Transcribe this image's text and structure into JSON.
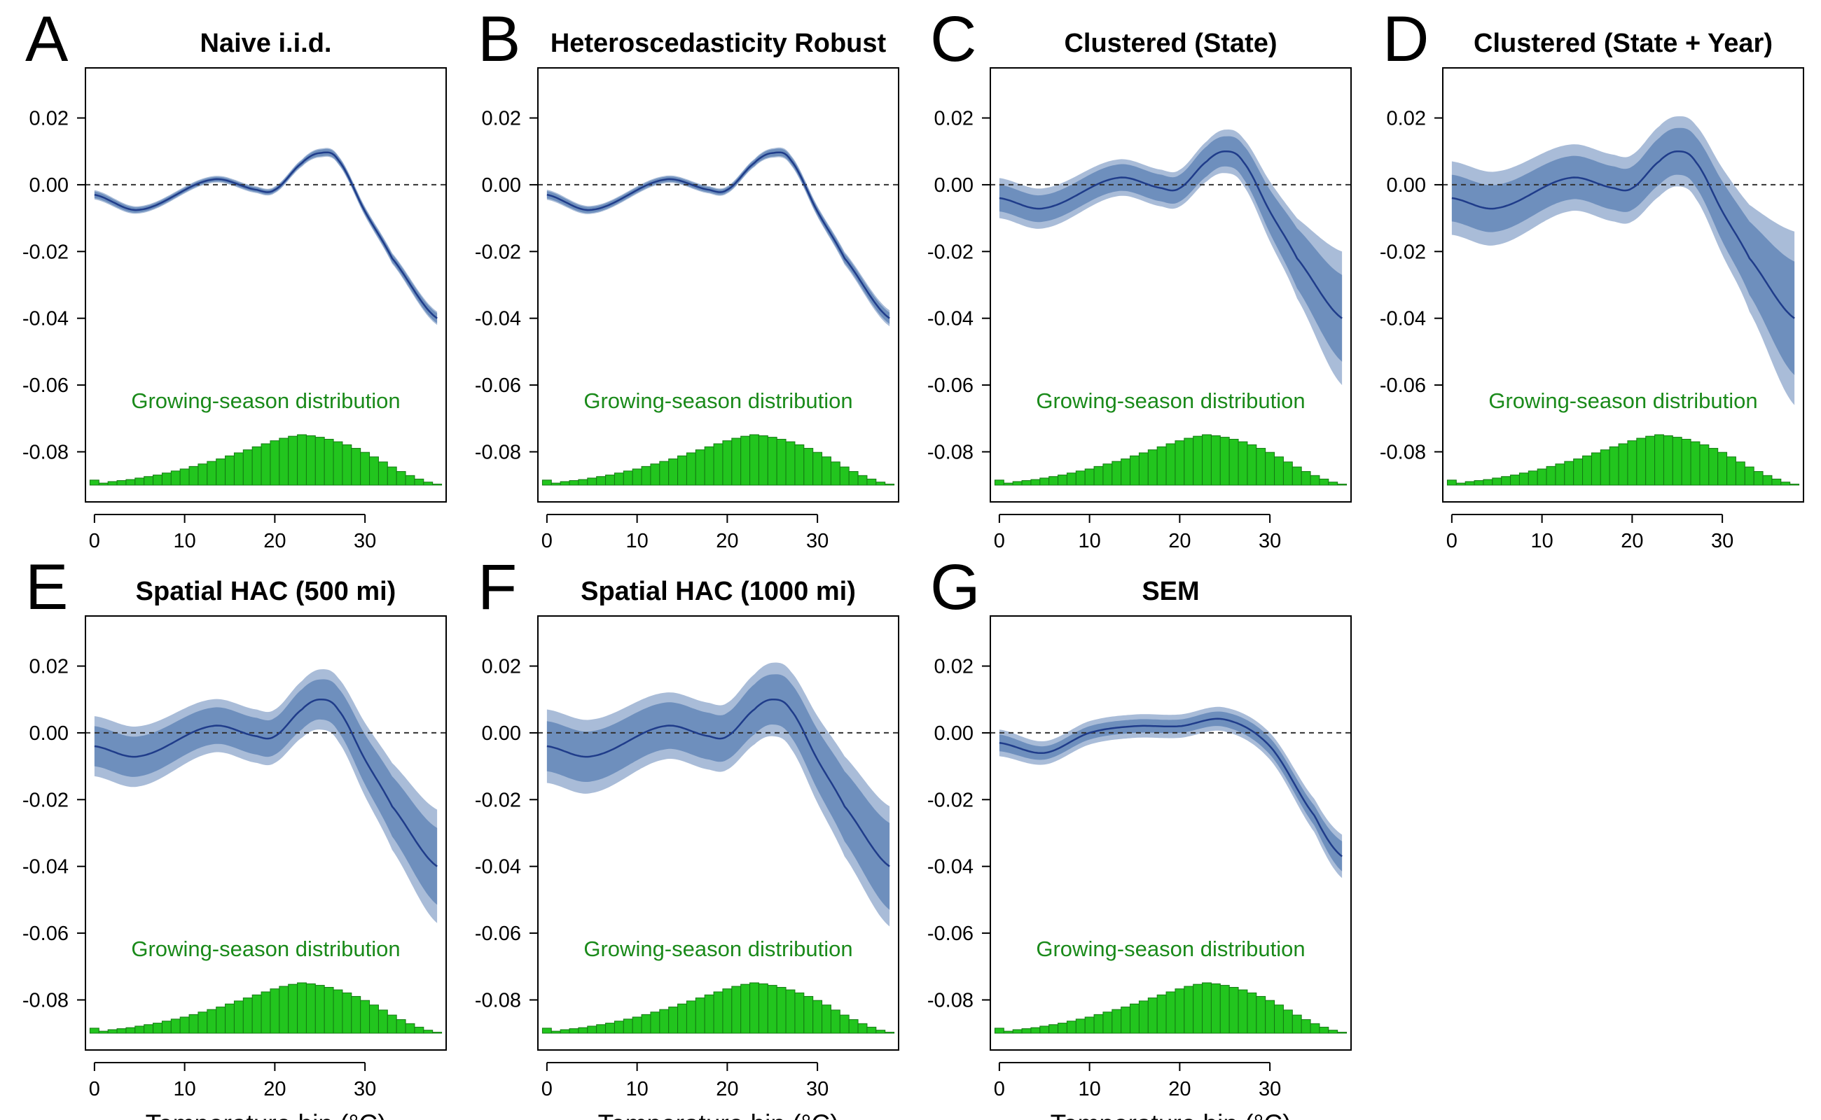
{
  "colors": {
    "line": "#1f3c8a",
    "band_inner": "#6e8fbd",
    "band_outer": "#a9bcd8",
    "hist_fill": "#22c51e",
    "hist_stroke": "#137a12",
    "dist_text": "#1a8a1a",
    "zero_line": "#333333"
  },
  "distribution_label": "Growing-season distribution",
  "x_axis_label": "Temperature bin (°C)",
  "chart_data": [
    {
      "type": "line",
      "letter": "A",
      "title": "Naive i.i.d.",
      "xlabel": "",
      "ylabel": "",
      "xlim": [
        -1,
        39
      ],
      "ylim": [
        -0.095,
        0.035
      ],
      "x_ticks": [
        0,
        10,
        20,
        30
      ],
      "x_tick_labels": [
        "0",
        "10",
        "20",
        "30"
      ],
      "y_ticks": [
        0.02,
        0.0,
        -0.02,
        -0.04,
        -0.06,
        -0.08
      ],
      "y_tick_labels": [
        "0.02",
        "0.00",
        "-0.02",
        "-0.04",
        "-0.06",
        "-0.08"
      ],
      "reference_line_y": 0,
      "curve_x": [
        0,
        5,
        13,
        18,
        20,
        23,
        25,
        27,
        30,
        33,
        38
      ],
      "curve_y": [
        -0.003,
        -0.0075,
        0.0015,
        -0.0015,
        -0.0015,
        0.0065,
        0.0095,
        0.0075,
        -0.008,
        -0.022,
        -0.04
      ],
      "band_inner_halfwidth": [
        0.001,
        0.0008,
        0.0007,
        0.0007,
        0.0007,
        0.0008,
        0.001,
        0.001,
        0.001,
        0.0012,
        0.0015
      ],
      "band_outer_halfwidth": [
        0.0014,
        0.0011,
        0.001,
        0.001,
        0.001,
        0.0011,
        0.0013,
        0.0013,
        0.0014,
        0.0016,
        0.002
      ],
      "histogram": {
        "start": -0.5,
        "bin_width": 1,
        "relative_heights": [
          0.1,
          0.04,
          0.07,
          0.09,
          0.11,
          0.14,
          0.17,
          0.2,
          0.24,
          0.28,
          0.32,
          0.37,
          0.42,
          0.47,
          0.52,
          0.58,
          0.64,
          0.7,
          0.76,
          0.82,
          0.88,
          0.93,
          0.97,
          1.0,
          0.98,
          0.95,
          0.91,
          0.86,
          0.8,
          0.73,
          0.65,
          0.56,
          0.46,
          0.36,
          0.27,
          0.19,
          0.12,
          0.06,
          0.02
        ]
      }
    },
    {
      "type": "line",
      "letter": "B",
      "title": "Heteroscedasticity Robust",
      "xlabel": "",
      "ylabel": "",
      "xlim": [
        -1,
        39
      ],
      "ylim": [
        -0.095,
        0.035
      ],
      "x_ticks": [
        0,
        10,
        20,
        30
      ],
      "x_tick_labels": [
        "0",
        "10",
        "20",
        "30"
      ],
      "y_ticks": [
        0.02,
        0.0,
        -0.02,
        -0.04,
        -0.06,
        -0.08
      ],
      "y_tick_labels": [
        "0.02",
        "0.00",
        "-0.02",
        "-0.04",
        "-0.06",
        "-0.08"
      ],
      "reference_line_y": 0,
      "curve_x": [
        0,
        5,
        13,
        18,
        20,
        23,
        25,
        27,
        30,
        33,
        38
      ],
      "curve_y": [
        -0.003,
        -0.0075,
        0.0015,
        -0.0015,
        -0.0015,
        0.0065,
        0.0095,
        0.0075,
        -0.008,
        -0.022,
        -0.04
      ],
      "band_inner_halfwidth": [
        0.0011,
        0.0009,
        0.0008,
        0.0008,
        0.0008,
        0.0009,
        0.0011,
        0.0011,
        0.0012,
        0.0014,
        0.0017
      ],
      "band_outer_halfwidth": [
        0.0015,
        0.0012,
        0.0011,
        0.0011,
        0.0011,
        0.0012,
        0.0014,
        0.0015,
        0.0016,
        0.0019,
        0.0024
      ],
      "histogram": {
        "start": -0.5,
        "bin_width": 1,
        "relative_heights": [
          0.1,
          0.04,
          0.07,
          0.09,
          0.11,
          0.14,
          0.17,
          0.2,
          0.24,
          0.28,
          0.32,
          0.37,
          0.42,
          0.47,
          0.52,
          0.58,
          0.64,
          0.7,
          0.76,
          0.82,
          0.88,
          0.93,
          0.97,
          1.0,
          0.98,
          0.95,
          0.91,
          0.86,
          0.8,
          0.73,
          0.65,
          0.56,
          0.46,
          0.36,
          0.27,
          0.19,
          0.12,
          0.06,
          0.02
        ]
      }
    },
    {
      "type": "line",
      "letter": "C",
      "title": "Clustered (State)",
      "xlabel": "",
      "ylabel": "",
      "xlim": [
        -1,
        39
      ],
      "ylim": [
        -0.095,
        0.035
      ],
      "x_ticks": [
        0,
        10,
        20,
        30
      ],
      "x_tick_labels": [
        "0",
        "10",
        "20",
        "30"
      ],
      "y_ticks": [
        0.02,
        0.0,
        -0.02,
        -0.04,
        -0.06,
        -0.08
      ],
      "y_tick_labels": [
        "0.02",
        "0.00",
        "-0.02",
        "-0.04",
        "-0.06",
        "-0.08"
      ],
      "reference_line_y": 0,
      "curve_x": [
        0,
        5,
        13,
        18,
        20,
        23,
        25,
        27,
        30,
        33,
        38
      ],
      "curve_y": [
        -0.004,
        -0.007,
        0.002,
        -0.001,
        -0.001,
        0.007,
        0.01,
        0.007,
        -0.008,
        -0.022,
        -0.04
      ],
      "band_inner_halfwidth": [
        0.004,
        0.004,
        0.004,
        0.004,
        0.004,
        0.0045,
        0.0045,
        0.005,
        0.0065,
        0.009,
        0.013
      ],
      "band_outer_halfwidth": [
        0.006,
        0.006,
        0.0055,
        0.0055,
        0.0055,
        0.006,
        0.0065,
        0.007,
        0.009,
        0.012,
        0.02
      ],
      "histogram": {
        "start": -0.5,
        "bin_width": 1,
        "relative_heights": [
          0.1,
          0.04,
          0.07,
          0.09,
          0.11,
          0.14,
          0.17,
          0.2,
          0.24,
          0.28,
          0.32,
          0.37,
          0.42,
          0.47,
          0.52,
          0.58,
          0.64,
          0.7,
          0.76,
          0.82,
          0.88,
          0.93,
          0.97,
          1.0,
          0.98,
          0.95,
          0.91,
          0.86,
          0.8,
          0.73,
          0.65,
          0.56,
          0.46,
          0.36,
          0.27,
          0.19,
          0.12,
          0.06,
          0.02
        ]
      }
    },
    {
      "type": "line",
      "letter": "D",
      "title": "Clustered (State + Year)",
      "xlabel": "",
      "ylabel": "",
      "xlim": [
        -1,
        39
      ],
      "ylim": [
        -0.095,
        0.035
      ],
      "x_ticks": [
        0,
        10,
        20,
        30
      ],
      "x_tick_labels": [
        "0",
        "10",
        "20",
        "30"
      ],
      "y_ticks": [
        0.02,
        0.0,
        -0.02,
        -0.04,
        -0.06,
        -0.08
      ],
      "y_tick_labels": [
        "0.02",
        "0.00",
        "-0.02",
        "-0.04",
        "-0.06",
        "-0.08"
      ],
      "reference_line_y": 0,
      "curve_x": [
        0,
        5,
        13,
        18,
        20,
        23,
        25,
        27,
        30,
        33,
        38
      ],
      "curve_y": [
        -0.004,
        -0.007,
        0.002,
        -0.001,
        -0.001,
        0.007,
        0.01,
        0.007,
        -0.008,
        -0.022,
        -0.04
      ],
      "band_inner_halfwidth": [
        0.007,
        0.007,
        0.0065,
        0.0065,
        0.0065,
        0.007,
        0.007,
        0.0075,
        0.009,
        0.011,
        0.017
      ],
      "band_outer_halfwidth": [
        0.011,
        0.011,
        0.01,
        0.01,
        0.01,
        0.0105,
        0.0105,
        0.011,
        0.013,
        0.016,
        0.026
      ],
      "histogram": {
        "start": -0.5,
        "bin_width": 1,
        "relative_heights": [
          0.1,
          0.04,
          0.07,
          0.09,
          0.11,
          0.14,
          0.17,
          0.2,
          0.24,
          0.28,
          0.32,
          0.37,
          0.42,
          0.47,
          0.52,
          0.58,
          0.64,
          0.7,
          0.76,
          0.82,
          0.88,
          0.93,
          0.97,
          1.0,
          0.98,
          0.95,
          0.91,
          0.86,
          0.8,
          0.73,
          0.65,
          0.56,
          0.46,
          0.36,
          0.27,
          0.19,
          0.12,
          0.06,
          0.02
        ]
      }
    },
    {
      "type": "line",
      "letter": "E",
      "title": "Spatial HAC (500 mi)",
      "xlabel": "Temperature bin (°C)",
      "ylabel": "",
      "xlim": [
        -1,
        39
      ],
      "ylim": [
        -0.095,
        0.035
      ],
      "x_ticks": [
        0,
        10,
        20,
        30
      ],
      "x_tick_labels": [
        "0",
        "10",
        "20",
        "30"
      ],
      "y_ticks": [
        0.02,
        0.0,
        -0.02,
        -0.04,
        -0.06,
        -0.08
      ],
      "y_tick_labels": [
        "0.02",
        "0.00",
        "-0.02",
        "-0.04",
        "-0.06",
        "-0.08"
      ],
      "reference_line_y": 0,
      "curve_x": [
        0,
        5,
        13,
        18,
        20,
        23,
        25,
        27,
        30,
        33,
        38
      ],
      "curve_y": [
        -0.004,
        -0.007,
        0.002,
        -0.001,
        -0.001,
        0.007,
        0.01,
        0.007,
        -0.008,
        -0.022,
        -0.04
      ],
      "band_inner_halfwidth": [
        0.006,
        0.006,
        0.0055,
        0.0055,
        0.0055,
        0.006,
        0.006,
        0.0065,
        0.0075,
        0.009,
        0.0115
      ],
      "band_outer_halfwidth": [
        0.009,
        0.009,
        0.008,
        0.008,
        0.008,
        0.0085,
        0.009,
        0.0095,
        0.011,
        0.013,
        0.017
      ],
      "histogram": {
        "start": -0.5,
        "bin_width": 1,
        "relative_heights": [
          0.1,
          0.04,
          0.07,
          0.09,
          0.11,
          0.14,
          0.17,
          0.2,
          0.24,
          0.28,
          0.32,
          0.37,
          0.42,
          0.47,
          0.52,
          0.58,
          0.64,
          0.7,
          0.76,
          0.82,
          0.88,
          0.93,
          0.97,
          1.0,
          0.98,
          0.95,
          0.91,
          0.86,
          0.8,
          0.73,
          0.65,
          0.56,
          0.46,
          0.36,
          0.27,
          0.19,
          0.12,
          0.06,
          0.02
        ]
      }
    },
    {
      "type": "line",
      "letter": "F",
      "title": "Spatial HAC (1000 mi)",
      "xlabel": "Temperature bin (°C)",
      "ylabel": "",
      "xlim": [
        -1,
        39
      ],
      "ylim": [
        -0.095,
        0.035
      ],
      "x_ticks": [
        0,
        10,
        20,
        30
      ],
      "x_tick_labels": [
        "0",
        "10",
        "20",
        "30"
      ],
      "y_ticks": [
        0.02,
        0.0,
        -0.02,
        -0.04,
        -0.06,
        -0.08
      ],
      "y_tick_labels": [
        "0.02",
        "0.00",
        "-0.02",
        "-0.04",
        "-0.06",
        "-0.08"
      ],
      "reference_line_y": 0,
      "curve_x": [
        0,
        5,
        13,
        18,
        20,
        23,
        25,
        27,
        30,
        33,
        38
      ],
      "curve_y": [
        -0.004,
        -0.007,
        0.002,
        -0.001,
        -0.001,
        0.007,
        0.01,
        0.007,
        -0.008,
        -0.022,
        -0.04
      ],
      "band_inner_halfwidth": [
        0.0075,
        0.0075,
        0.007,
        0.007,
        0.007,
        0.0075,
        0.0075,
        0.008,
        0.009,
        0.0105,
        0.013
      ],
      "band_outer_halfwidth": [
        0.011,
        0.011,
        0.01,
        0.01,
        0.01,
        0.0105,
        0.011,
        0.0115,
        0.013,
        0.015,
        0.018
      ],
      "histogram": {
        "start": -0.5,
        "bin_width": 1,
        "relative_heights": [
          0.1,
          0.04,
          0.07,
          0.09,
          0.11,
          0.14,
          0.17,
          0.2,
          0.24,
          0.28,
          0.32,
          0.37,
          0.42,
          0.47,
          0.52,
          0.58,
          0.64,
          0.7,
          0.76,
          0.82,
          0.88,
          0.93,
          0.97,
          1.0,
          0.98,
          0.95,
          0.91,
          0.86,
          0.8,
          0.73,
          0.65,
          0.56,
          0.46,
          0.36,
          0.27,
          0.19,
          0.12,
          0.06,
          0.02
        ]
      }
    },
    {
      "type": "line",
      "letter": "G",
      "title": "SEM",
      "xlabel": "Temperature bin (°C)",
      "ylabel": "",
      "xlim": [
        -1,
        39
      ],
      "ylim": [
        -0.095,
        0.035
      ],
      "x_ticks": [
        0,
        10,
        20,
        30
      ],
      "x_tick_labels": [
        "0",
        "10",
        "20",
        "30"
      ],
      "y_ticks": [
        0.02,
        0.0,
        -0.02,
        -0.04,
        -0.06,
        -0.08
      ],
      "y_tick_labels": [
        "0.02",
        "0.00",
        "-0.02",
        "-0.04",
        "-0.06",
        "-0.08"
      ],
      "reference_line_y": 0,
      "curve_x": [
        0,
        5,
        10,
        15,
        20,
        25,
        30,
        35,
        38
      ],
      "curve_y": [
        -0.003,
        -0.006,
        0.0,
        0.002,
        0.002,
        0.004,
        -0.004,
        -0.025,
        -0.037
      ],
      "band_inner_halfwidth": [
        0.0025,
        0.002,
        0.002,
        0.002,
        0.002,
        0.0022,
        0.0025,
        0.003,
        0.0045
      ],
      "band_outer_halfwidth": [
        0.004,
        0.0035,
        0.0035,
        0.0035,
        0.0035,
        0.0036,
        0.004,
        0.005,
        0.0065
      ],
      "histogram": {
        "start": -0.5,
        "bin_width": 1,
        "relative_heights": [
          0.1,
          0.04,
          0.07,
          0.09,
          0.11,
          0.14,
          0.17,
          0.2,
          0.24,
          0.28,
          0.32,
          0.37,
          0.42,
          0.47,
          0.52,
          0.58,
          0.64,
          0.7,
          0.76,
          0.82,
          0.88,
          0.93,
          0.97,
          1.0,
          0.98,
          0.95,
          0.91,
          0.86,
          0.8,
          0.73,
          0.65,
          0.56,
          0.46,
          0.36,
          0.27,
          0.19,
          0.12,
          0.06,
          0.02
        ]
      }
    }
  ]
}
